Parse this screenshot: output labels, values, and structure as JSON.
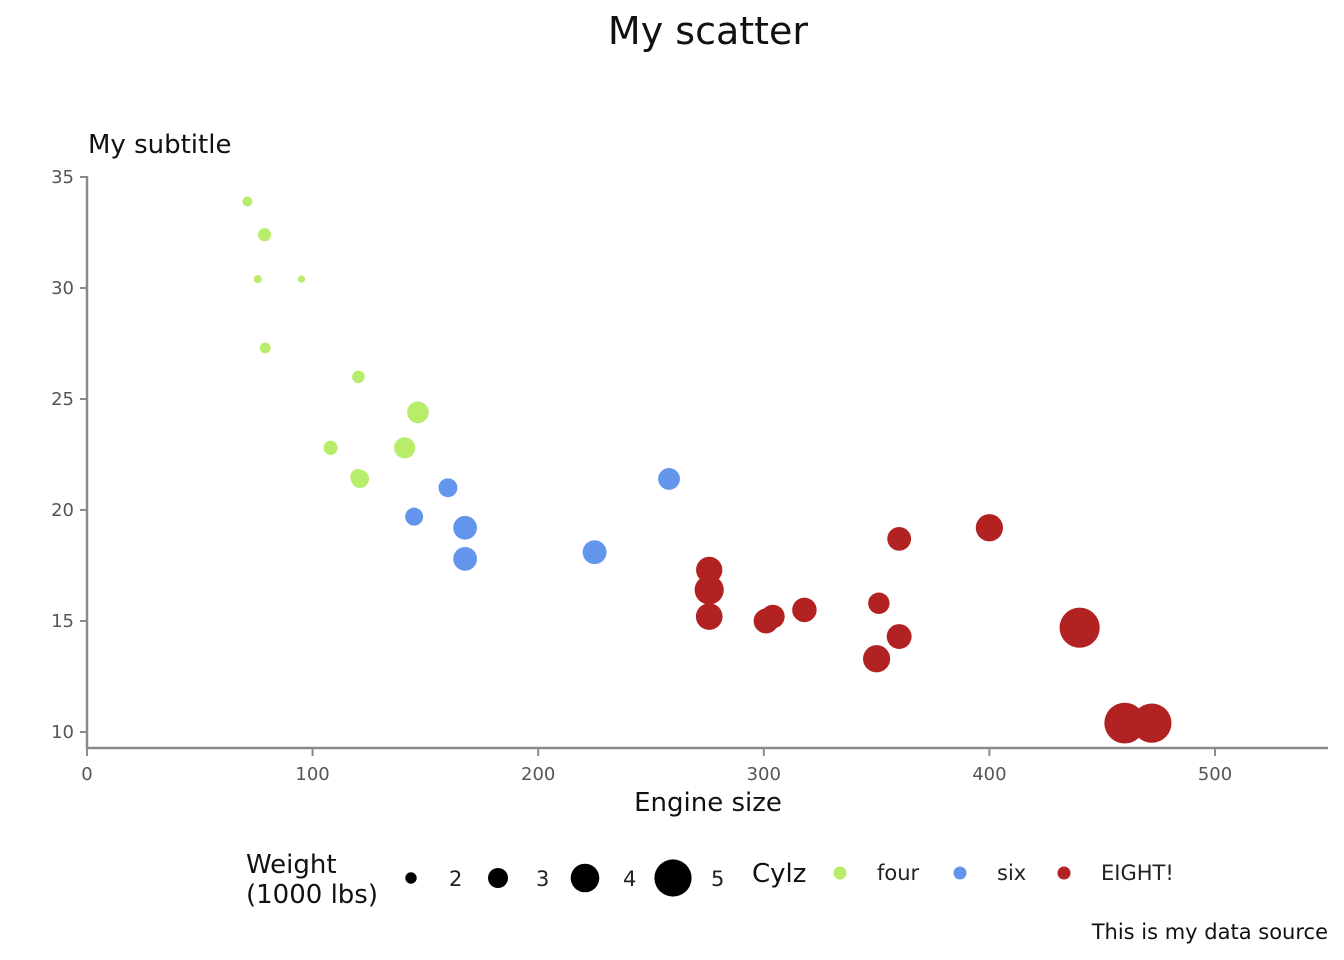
{
  "chart_data": {
    "type": "scatter",
    "title": "My scatter",
    "subtitle": "My subtitle",
    "caption": "This is my data source",
    "xlabel": "Engine size",
    "ylabel": "",
    "xlim": [
      0,
      550
    ],
    "ylim": [
      9,
      35.5
    ],
    "x_ticks": [
      "0",
      "100",
      "200",
      "300",
      "400",
      "500"
    ],
    "x_tick_values": [
      0,
      100,
      200,
      300,
      400,
      500
    ],
    "y_ticks": [
      "10",
      "15",
      "20",
      "25",
      "30",
      "35"
    ],
    "y_tick_values": [
      10,
      15,
      20,
      25,
      30,
      35
    ],
    "grid": false,
    "legend_position": "bottom",
    "size_legend": {
      "title": "Weight\n(1000 lbs)",
      "title_lines": [
        "Weight",
        "(1000 lbs)"
      ],
      "labels": [
        "2",
        "3",
        "4",
        "5"
      ],
      "values": [
        2,
        3,
        4,
        5
      ]
    },
    "color_legend": {
      "title": "Cylz",
      "labels": [
        "four",
        "six",
        "EIGHT!"
      ],
      "colors": [
        "#b8ec6b",
        "#6495ed",
        "#b22222"
      ]
    },
    "series": [
      {
        "name": "four",
        "color": "#b8ec6b",
        "points": [
          {
            "x": 71.1,
            "y": 33.9,
            "w": 1.835
          },
          {
            "x": 78.7,
            "y": 32.4,
            "w": 2.2
          },
          {
            "x": 75.7,
            "y": 30.4,
            "w": 1.615
          },
          {
            "x": 95.1,
            "y": 30.4,
            "w": 1.513
          },
          {
            "x": 79.0,
            "y": 27.3,
            "w": 1.935
          },
          {
            "x": 120.3,
            "y": 26.0,
            "w": 2.14
          },
          {
            "x": 146.7,
            "y": 24.4,
            "w": 3.19
          },
          {
            "x": 108.0,
            "y": 22.8,
            "w": 2.32
          },
          {
            "x": 140.8,
            "y": 22.8,
            "w": 3.15
          },
          {
            "x": 120.1,
            "y": 21.5,
            "w": 2.465
          },
          {
            "x": 121.0,
            "y": 21.4,
            "w": 2.78
          }
        ]
      },
      {
        "name": "six",
        "color": "#6495ed",
        "points": [
          {
            "x": 258.0,
            "y": 21.4,
            "w": 3.215
          },
          {
            "x": 160.0,
            "y": 21.0,
            "w": 2.62
          },
          {
            "x": 160.0,
            "y": 21.0,
            "w": 2.875
          },
          {
            "x": 145.0,
            "y": 19.7,
            "w": 2.77
          },
          {
            "x": 167.6,
            "y": 19.2,
            "w": 3.44
          },
          {
            "x": 225.0,
            "y": 18.1,
            "w": 3.46
          },
          {
            "x": 167.6,
            "y": 17.8,
            "w": 3.44
          }
        ]
      },
      {
        "name": "EIGHT!",
        "color": "#b22222",
        "points": [
          {
            "x": 400.0,
            "y": 19.2,
            "w": 3.845
          },
          {
            "x": 360.0,
            "y": 18.7,
            "w": 3.44
          },
          {
            "x": 275.8,
            "y": 17.3,
            "w": 3.73
          },
          {
            "x": 275.8,
            "y": 16.4,
            "w": 4.07
          },
          {
            "x": 351.0,
            "y": 15.8,
            "w": 3.17
          },
          {
            "x": 318.0,
            "y": 15.5,
            "w": 3.52
          },
          {
            "x": 304.0,
            "y": 15.2,
            "w": 3.435
          },
          {
            "x": 275.8,
            "y": 15.2,
            "w": 3.78
          },
          {
            "x": 301.0,
            "y": 15.0,
            "w": 3.57
          },
          {
            "x": 440.0,
            "y": 14.7,
            "w": 5.345
          },
          {
            "x": 360.0,
            "y": 14.3,
            "w": 3.57
          },
          {
            "x": 350.0,
            "y": 13.3,
            "w": 3.84
          },
          {
            "x": 472.0,
            "y": 10.4,
            "w": 5.25
          },
          {
            "x": 460.0,
            "y": 10.4,
            "w": 5.424
          }
        ]
      }
    ]
  }
}
